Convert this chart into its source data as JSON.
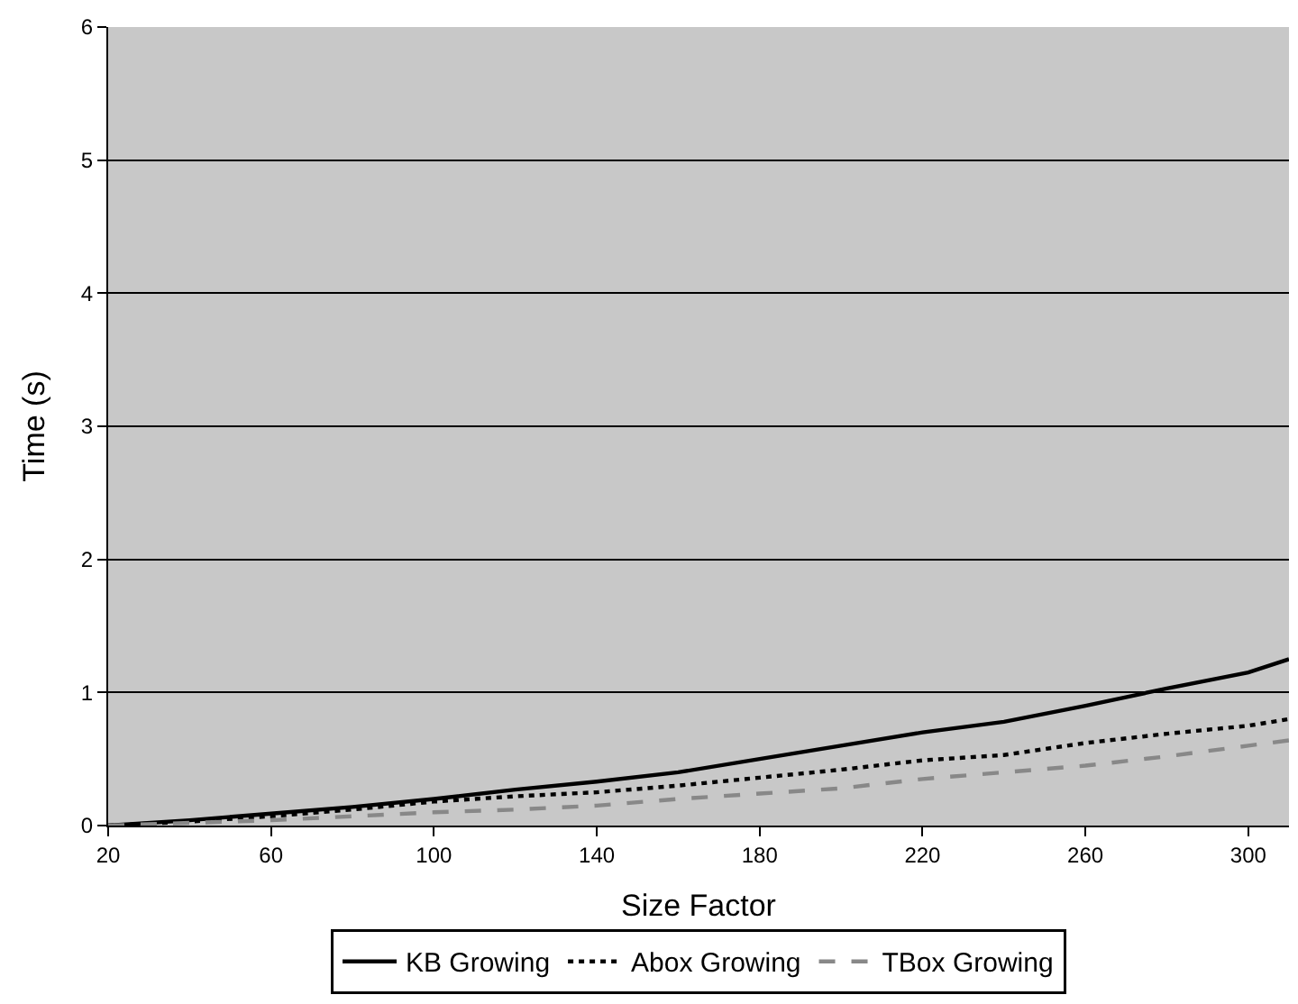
{
  "chart_data": {
    "type": "line",
    "xlabel": "Size Factor",
    "ylabel": "Time (s)",
    "x": [
      20,
      40,
      60,
      80,
      100,
      120,
      140,
      160,
      180,
      200,
      220,
      240,
      260,
      280,
      300,
      310
    ],
    "series": [
      {
        "name": "KB Growing",
        "color": "#000000",
        "line_style": "solid",
        "values": [
          0,
          0.04,
          0.09,
          0.14,
          0.2,
          0.27,
          0.33,
          0.4,
          0.5,
          0.6,
          0.7,
          0.78,
          0.9,
          1.03,
          1.15,
          1.25
        ]
      },
      {
        "name": "Abox Growing",
        "color": "#000000",
        "line_style": "dotted",
        "values": [
          0,
          0.03,
          0.07,
          0.12,
          0.18,
          0.22,
          0.25,
          0.3,
          0.36,
          0.42,
          0.49,
          0.53,
          0.62,
          0.69,
          0.75,
          0.8
        ]
      },
      {
        "name": "TBox Growing",
        "color": "#888888",
        "line_style": "dashed",
        "values": [
          0,
          0.02,
          0.04,
          0.07,
          0.1,
          0.12,
          0.15,
          0.2,
          0.24,
          0.28,
          0.35,
          0.4,
          0.45,
          0.52,
          0.6,
          0.64
        ]
      }
    ],
    "xlim": [
      20,
      310
    ],
    "xticks": [
      20,
      60,
      100,
      140,
      180,
      220,
      260,
      300
    ],
    "ylim": [
      0,
      6
    ],
    "yticks": [
      0,
      1,
      2,
      3,
      4,
      5,
      6
    ],
    "grid": "y",
    "legend": "bottom",
    "marker": "none"
  }
}
